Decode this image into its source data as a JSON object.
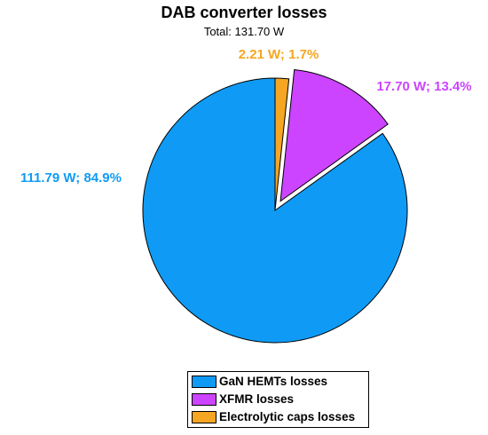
{
  "chart_data": {
    "type": "pie",
    "title": "DAB converter losses",
    "subtitle": "Total: 131.70 W",
    "unit": "W",
    "slices": [
      {
        "name": "Electrolytic caps losses",
        "value": 2.21,
        "percent": 1.7,
        "label": "2.21 W; 1.7%",
        "color": "#f5a623",
        "exploded": false
      },
      {
        "name": "XFMR losses",
        "value": 17.7,
        "percent": 13.4,
        "label": "17.70 W; 13.4%",
        "color": "#cc44ff",
        "exploded": true
      },
      {
        "name": "GaN HEMTs losses",
        "value": 111.79,
        "percent": 84.9,
        "label": "111.79 W; 84.9%",
        "color": "#0f9bf5",
        "exploded": false
      }
    ],
    "legend": {
      "position": "bottom-center",
      "entries": [
        "GaN HEMTs losses",
        "XFMR losses",
        "Electrolytic caps losses"
      ]
    }
  }
}
